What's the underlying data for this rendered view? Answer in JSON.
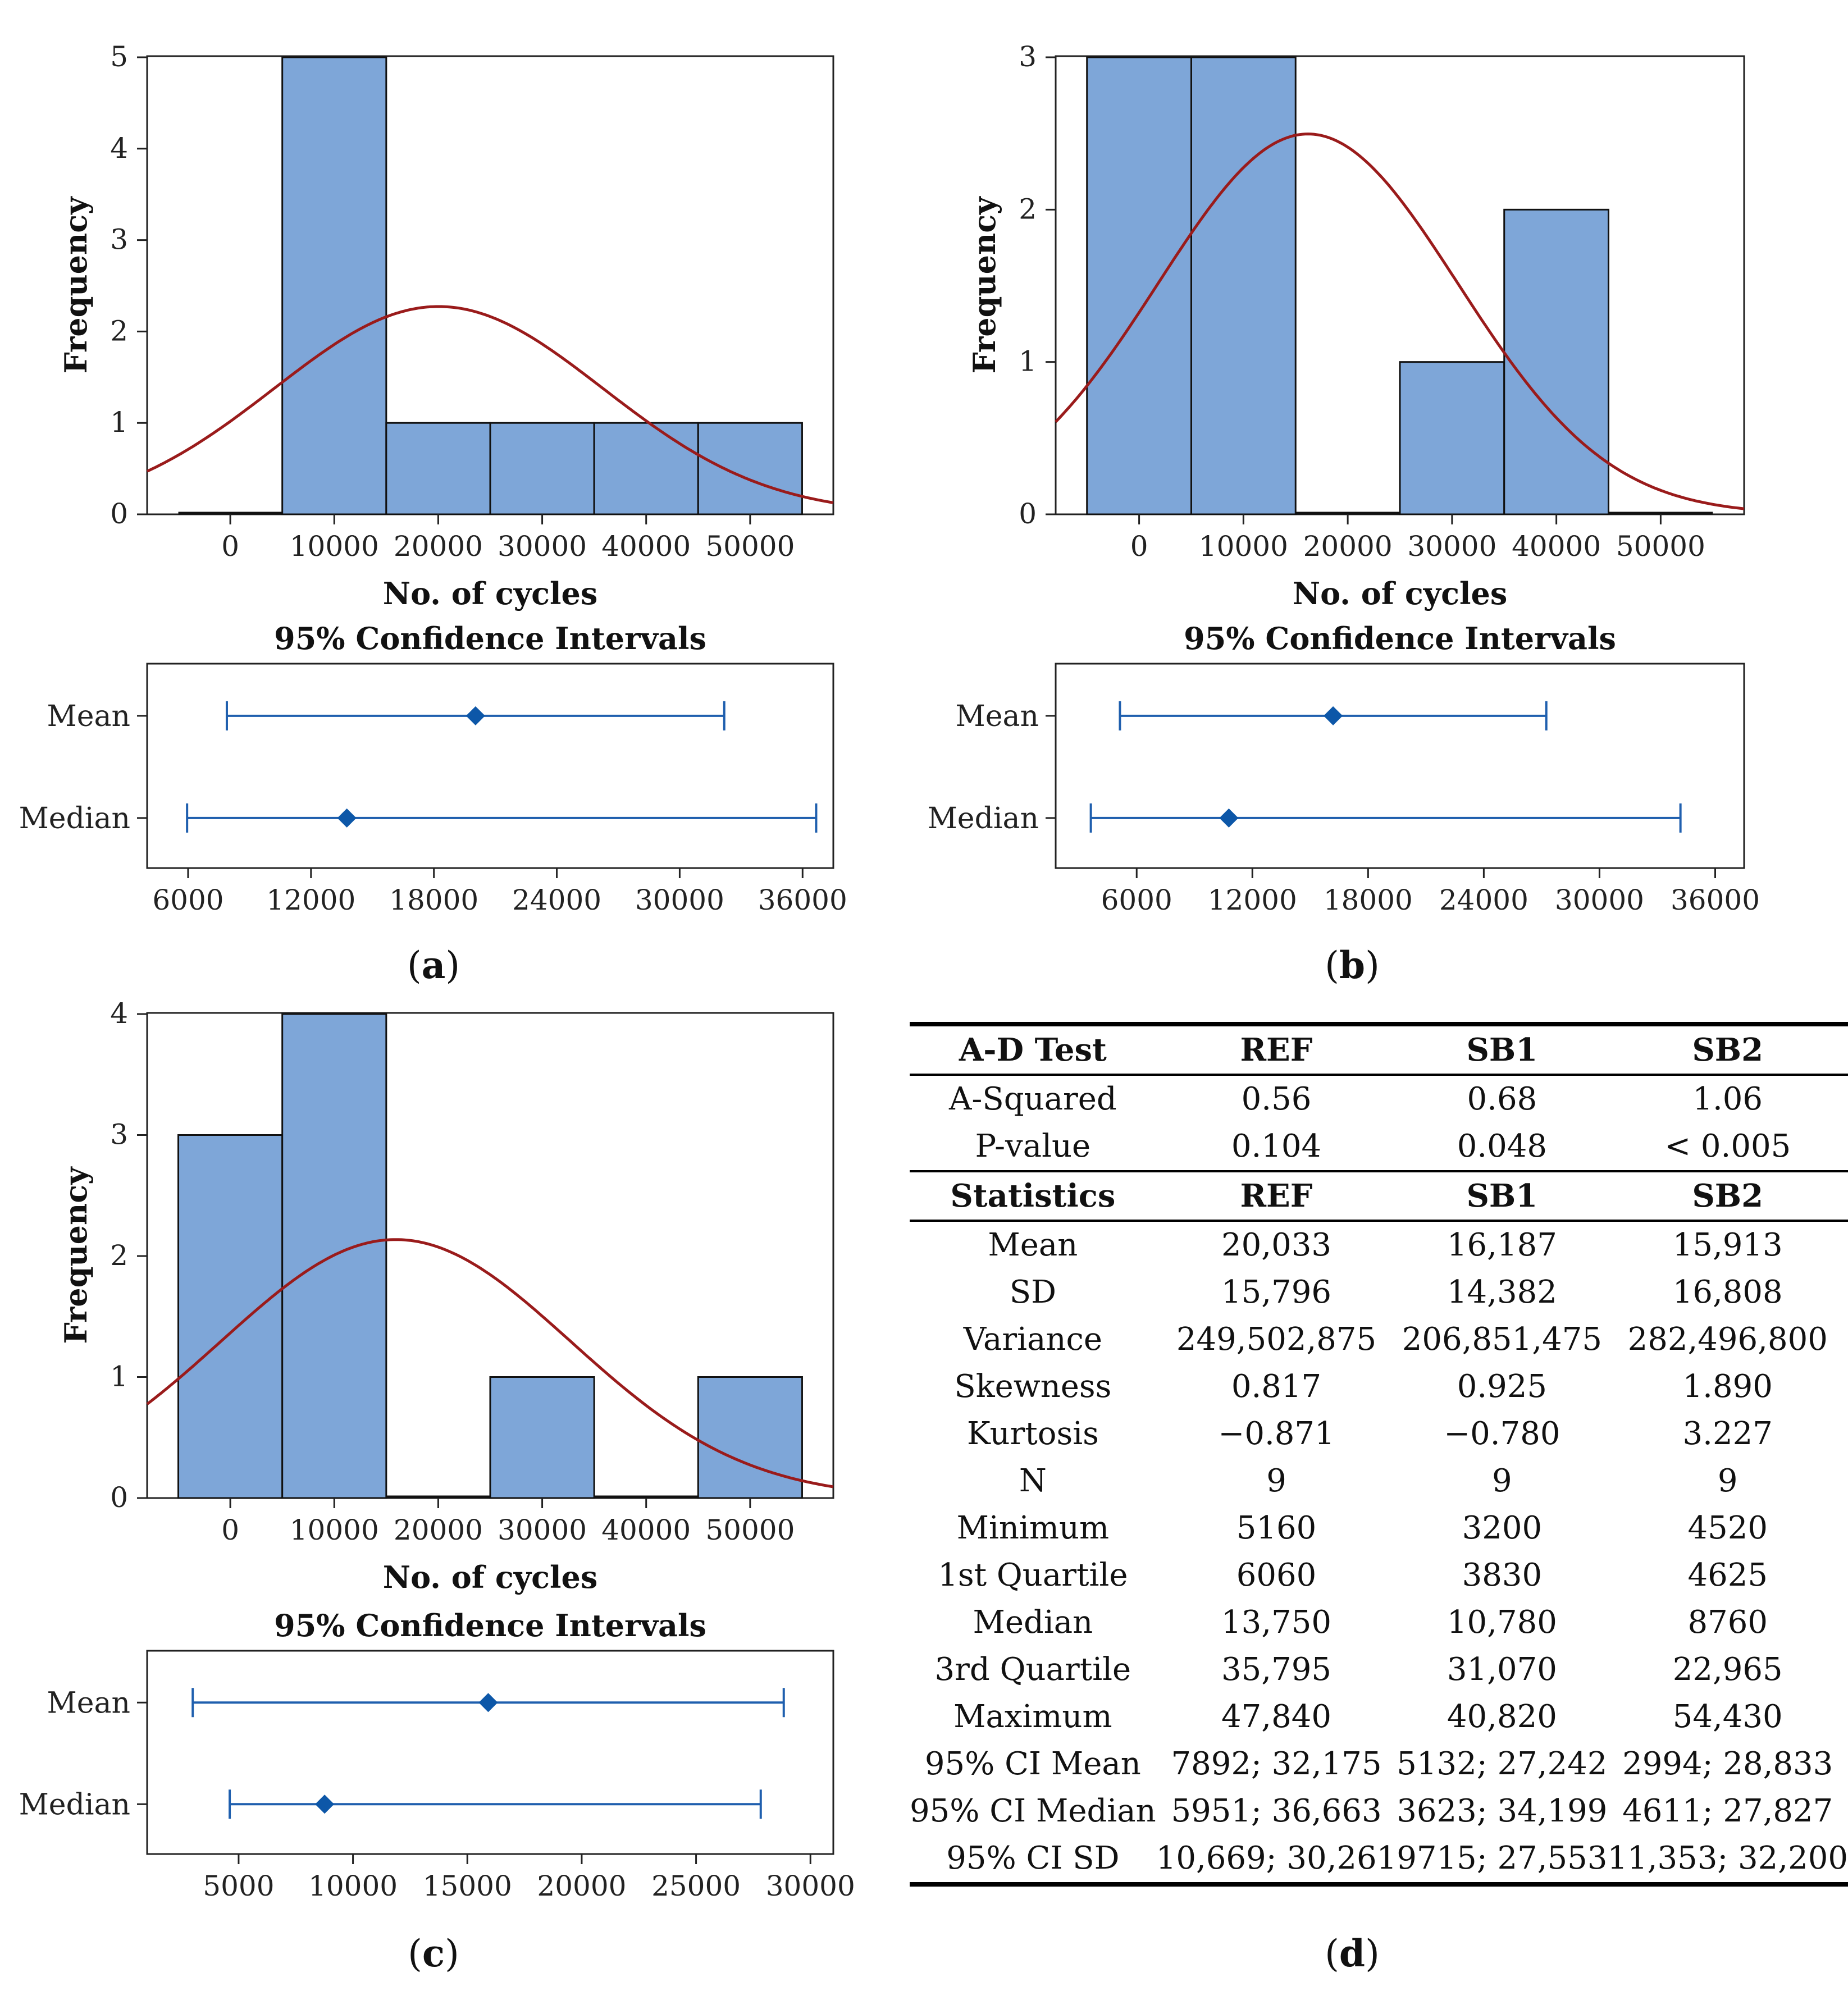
{
  "chart_data": [
    {
      "id": "a",
      "type": "bar",
      "panel_label": "a",
      "histogram": {
        "xlabel": "No. of cycles",
        "ylabel": "Frequency",
        "xlim": [
          -8000,
          58000
        ],
        "ylim": [
          0,
          5
        ],
        "xticks": [
          0,
          10000,
          20000,
          30000,
          40000,
          50000
        ],
        "yticks": [
          0,
          1,
          2,
          3,
          4,
          5
        ],
        "bins": [
          {
            "from": -5000,
            "to": 5000,
            "count": 0
          },
          {
            "from": 5000,
            "to": 15000,
            "count": 5
          },
          {
            "from": 15000,
            "to": 25000,
            "count": 1
          },
          {
            "from": 25000,
            "to": 35000,
            "count": 1
          },
          {
            "from": 35000,
            "to": 45000,
            "count": 1
          },
          {
            "from": 45000,
            "to": 55000,
            "count": 1
          }
        ],
        "normal_fit": {
          "mean": 20033,
          "sd": 15796,
          "n": 9,
          "bin_width": 10000
        }
      },
      "ci": {
        "title": "95% Confidence Intervals",
        "xlim": [
          4000,
          37500
        ],
        "xticks": [
          6000,
          12000,
          18000,
          24000,
          30000,
          36000
        ],
        "rows": [
          {
            "label": "Mean",
            "low": 7892,
            "center": 20033,
            "high": 32175
          },
          {
            "label": "Median",
            "low": 5951,
            "center": 13750,
            "high": 36663
          }
        ]
      }
    },
    {
      "id": "b",
      "type": "bar",
      "panel_label": "b",
      "histogram": {
        "xlabel": "No. of cycles",
        "ylabel": "Frequency",
        "xlim": [
          -8000,
          58000
        ],
        "ylim": [
          0,
          3
        ],
        "xticks": [
          0,
          10000,
          20000,
          30000,
          40000,
          50000
        ],
        "yticks": [
          0,
          1,
          2,
          3
        ],
        "bins": [
          {
            "from": -5000,
            "to": 5000,
            "count": 3
          },
          {
            "from": 5000,
            "to": 15000,
            "count": 3
          },
          {
            "from": 15000,
            "to": 25000,
            "count": 0
          },
          {
            "from": 25000,
            "to": 35000,
            "count": 1
          },
          {
            "from": 35000,
            "to": 45000,
            "count": 2
          },
          {
            "from": 45000,
            "to": 55000,
            "count": 0
          }
        ],
        "normal_fit": {
          "mean": 16187,
          "sd": 14382,
          "n": 9,
          "bin_width": 10000
        }
      },
      "ci": {
        "title": "95% Confidence Intervals",
        "xlim": [
          1800,
          37500
        ],
        "xticks": [
          6000,
          12000,
          18000,
          24000,
          30000,
          36000
        ],
        "rows": [
          {
            "label": "Mean",
            "low": 5132,
            "center": 16187,
            "high": 27242
          },
          {
            "label": "Median",
            "low": 3623,
            "center": 10780,
            "high": 34199
          }
        ]
      }
    },
    {
      "id": "c",
      "type": "bar",
      "panel_label": "c",
      "histogram": {
        "xlabel": "No. of cycles",
        "ylabel": "Frequency",
        "xlim": [
          -8000,
          58000
        ],
        "ylim": [
          0,
          4
        ],
        "xticks": [
          0,
          10000,
          20000,
          30000,
          40000,
          50000
        ],
        "yticks": [
          0,
          1,
          2,
          3,
          4
        ],
        "bins": [
          {
            "from": -5000,
            "to": 5000,
            "count": 3
          },
          {
            "from": 5000,
            "to": 15000,
            "count": 4
          },
          {
            "from": 15000,
            "to": 25000,
            "count": 0
          },
          {
            "from": 25000,
            "to": 35000,
            "count": 1
          },
          {
            "from": 35000,
            "to": 45000,
            "count": 0
          },
          {
            "from": 45000,
            "to": 55000,
            "count": 1
          }
        ],
        "normal_fit": {
          "mean": 15913,
          "sd": 16808,
          "n": 9,
          "bin_width": 10000
        }
      },
      "ci": {
        "title": "95% Confidence Intervals",
        "xlim": [
          1000,
          31000
        ],
        "xticks": [
          5000,
          10000,
          15000,
          20000,
          25000,
          30000
        ],
        "rows": [
          {
            "label": "Mean",
            "low": 2994,
            "center": 15913,
            "high": 28833
          },
          {
            "label": "Median",
            "low": 4611,
            "center": 8760,
            "high": 27827
          }
        ]
      }
    }
  ],
  "colors": {
    "bar_fill": "#7ea6d8",
    "bar_stroke": "#111111",
    "curve": "#9a1b1b",
    "ci": "#1f5fae",
    "ci_point": "#0d57a8"
  },
  "table": {
    "panel_label": "d",
    "ad_header": [
      "A-D Test",
      "REF",
      "SB1",
      "SB2"
    ],
    "ad_rows": [
      [
        "A-Squared",
        "0.56",
        "0.68",
        "1.06"
      ],
      [
        "P-value",
        "0.104",
        "0.048",
        "< 0.005"
      ]
    ],
    "stats_header": [
      "Statistics",
      "REF",
      "SB1",
      "SB2"
    ],
    "stats_rows": [
      [
        "Mean",
        "20,033",
        "16,187",
        "15,913"
      ],
      [
        "SD",
        "15,796",
        "14,382",
        "16,808"
      ],
      [
        "Variance",
        "249,502,875",
        "206,851,475",
        "282,496,800"
      ],
      [
        "Skewness",
        "0.817",
        "0.925",
        "1.890"
      ],
      [
        "Kurtosis",
        "−0.871",
        "−0.780",
        "3.227"
      ],
      [
        "N",
        "9",
        "9",
        "9"
      ],
      [
        "Minimum",
        "5160",
        "3200",
        "4520"
      ],
      [
        "1st Quartile",
        "6060",
        "3830",
        "4625"
      ],
      [
        "Median",
        "13,750",
        "10,780",
        "8760"
      ],
      [
        "3rd Quartile",
        "35,795",
        "31,070",
        "22,965"
      ],
      [
        "Maximum",
        "47,840",
        "40,820",
        "54,430"
      ],
      [
        "95% CI Mean",
        "7892; 32,175",
        "5132; 27,242",
        "2994; 28,833"
      ],
      [
        "95% CI Median",
        "5951; 36,663",
        "3623; 34,199",
        "4611; 27,827"
      ],
      [
        "95% CI SD",
        "10,669; 30,261",
        "9715; 27,553",
        "11,353; 32,200"
      ]
    ]
  }
}
